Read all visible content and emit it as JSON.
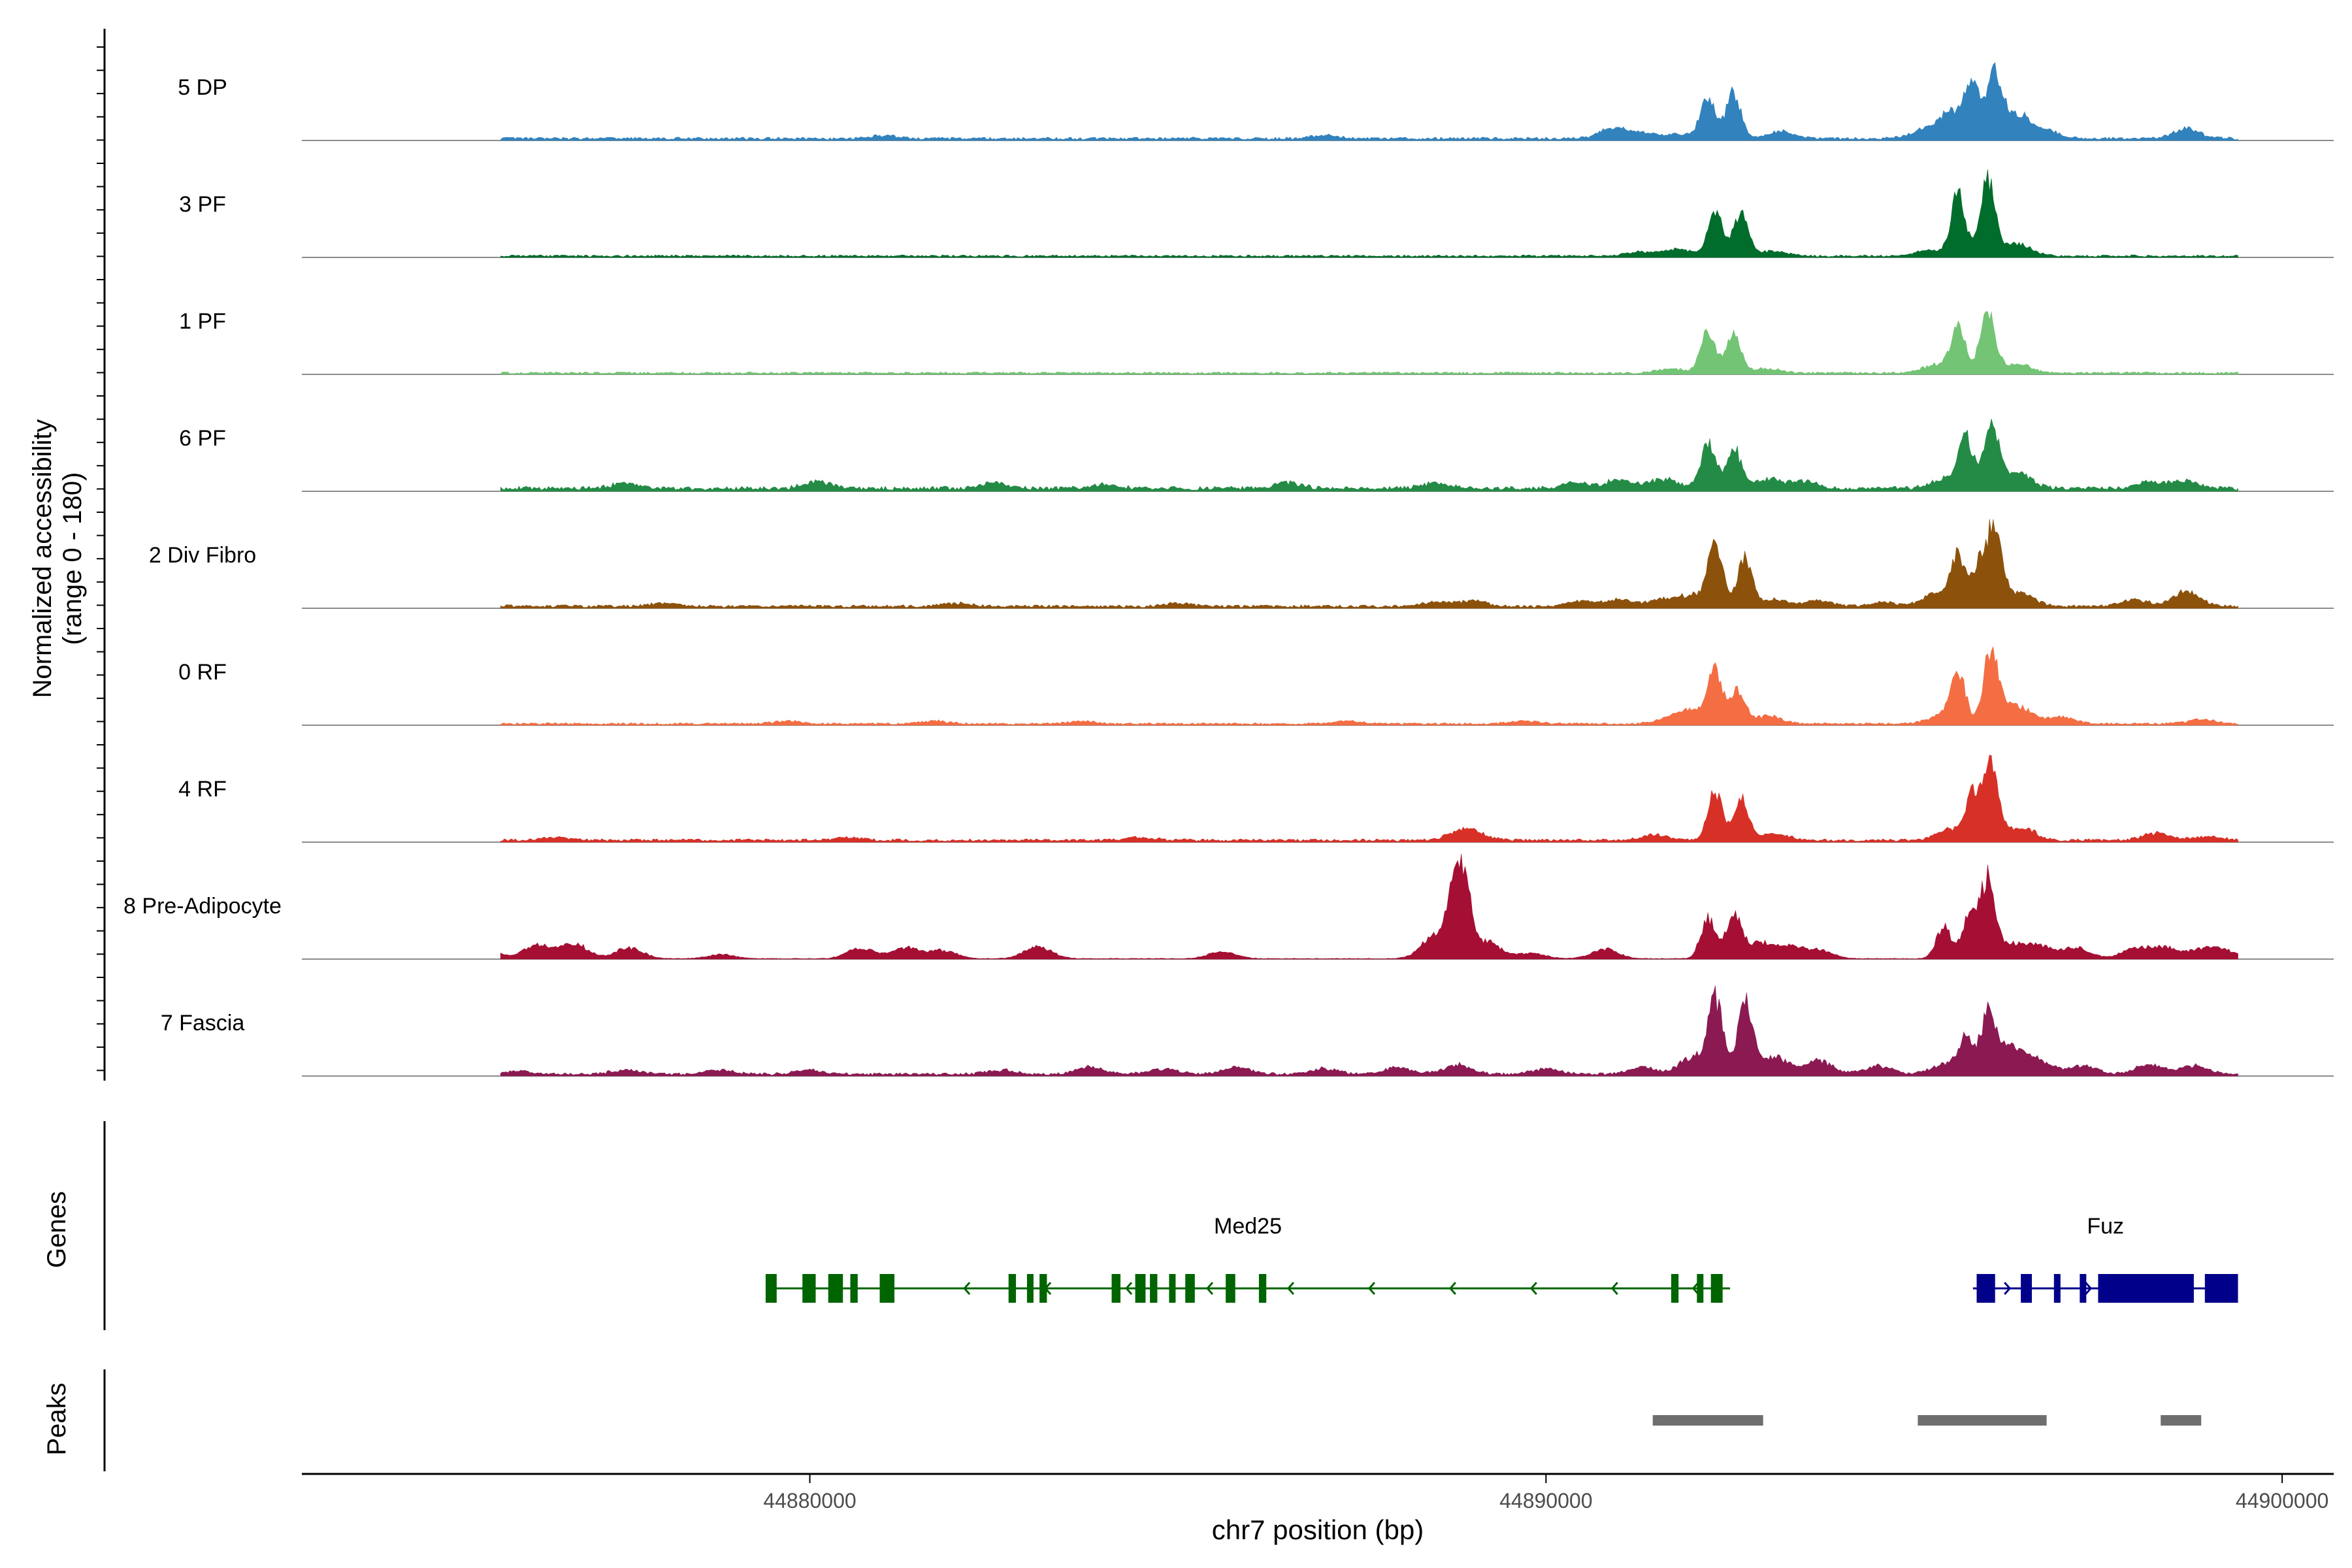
{
  "chart_data": {
    "type": "area",
    "title": "",
    "xlabel": "chr7 position (bp)",
    "ylabel_line1": "Normalized accessibility",
    "ylabel_line2": "(range 0 - 180)",
    "yrange": [
      0,
      180
    ],
    "xlim": [
      44873100,
      44900700
    ],
    "x_ticks": [
      {
        "value": 44880000,
        "label": "44880000"
      },
      {
        "value": 44890000,
        "label": "44890000"
      },
      {
        "value": 44900000,
        "label": "44900000"
      }
    ],
    "tracks": [
      {
        "name": "5 DP",
        "color": "#3182bd",
        "bg": 4,
        "peaks": [
          [
            44881000,
            4
          ],
          [
            44887000,
            5
          ],
          [
            44890900,
            14
          ],
          [
            44891300,
            8
          ],
          [
            44891800,
            6
          ],
          [
            44892200,
            62
          ],
          [
            44892550,
            66
          ],
          [
            44893200,
            10
          ],
          [
            44895100,
            10
          ],
          [
            44895500,
            38
          ],
          [
            44895800,
            82
          ],
          [
            44896100,
            86
          ],
          [
            44896400,
            34
          ],
          [
            44896800,
            10
          ],
          [
            44898700,
            14
          ]
        ]
      },
      {
        "name": "3 PF",
        "color": "#006d2c",
        "bg": 3,
        "peaks": [
          [
            44891300,
            6
          ],
          [
            44891800,
            10
          ],
          [
            44892300,
            68
          ],
          [
            44892650,
            60
          ],
          [
            44893100,
            8
          ],
          [
            44895200,
            8
          ],
          [
            44895600,
            88
          ],
          [
            44896000,
            108
          ],
          [
            44896400,
            18
          ]
        ]
      },
      {
        "name": "1 PF",
        "color": "#74c476",
        "bg": 3,
        "peaks": [
          [
            44891700,
            6
          ],
          [
            44892200,
            60
          ],
          [
            44892550,
            56
          ],
          [
            44893000,
            6
          ],
          [
            44895300,
            12
          ],
          [
            44895600,
            62
          ],
          [
            44896000,
            92
          ],
          [
            44896400,
            14
          ]
        ]
      },
      {
        "name": "6 PF",
        "color": "#238b45",
        "bg": 6,
        "peaks": [
          [
            44877500,
            8
          ],
          [
            44880100,
            10
          ],
          [
            44882500,
            8
          ],
          [
            44884000,
            6
          ],
          [
            44886500,
            8
          ],
          [
            44888500,
            8
          ],
          [
            44890400,
            8
          ],
          [
            44891000,
            12
          ],
          [
            44891600,
            14
          ],
          [
            44892200,
            64
          ],
          [
            44892550,
            58
          ],
          [
            44893000,
            14
          ],
          [
            44893500,
            10
          ],
          [
            44895400,
            14
          ],
          [
            44895700,
            74
          ],
          [
            44896050,
            96
          ],
          [
            44896400,
            24
          ],
          [
            44898200,
            10
          ],
          [
            44898700,
            10
          ]
        ]
      },
      {
        "name": "2 Div Fibro",
        "color": "#8c510a",
        "bg": 4,
        "peaks": [
          [
            44875500,
            5
          ],
          [
            44878000,
            4
          ],
          [
            44882000,
            5
          ],
          [
            44885000,
            4
          ],
          [
            44888500,
            6
          ],
          [
            44889000,
            8
          ],
          [
            44890500,
            8
          ],
          [
            44891000,
            10
          ],
          [
            44891600,
            10
          ],
          [
            44892000,
            16
          ],
          [
            44892300,
            90
          ],
          [
            44892700,
            68
          ],
          [
            44893100,
            10
          ],
          [
            44893700,
            8
          ],
          [
            44894600,
            6
          ],
          [
            44895300,
            18
          ],
          [
            44895600,
            72
          ],
          [
            44895900,
            62
          ],
          [
            44896100,
            110
          ],
          [
            44896450,
            20
          ],
          [
            44898000,
            10
          ],
          [
            44898700,
            22
          ]
        ]
      },
      {
        "name": "0 RF",
        "color": "#f46d43",
        "bg": 3,
        "peaks": [
          [
            44879700,
            4
          ],
          [
            44881700,
            4
          ],
          [
            44883700,
            4
          ],
          [
            44887300,
            4
          ],
          [
            44889700,
            4
          ],
          [
            44891700,
            8
          ],
          [
            44892000,
            18
          ],
          [
            44892300,
            72
          ],
          [
            44892600,
            48
          ],
          [
            44893000,
            12
          ],
          [
            44895400,
            14
          ],
          [
            44895600,
            68
          ],
          [
            44896050,
            108
          ],
          [
            44896400,
            28
          ],
          [
            44897000,
            10
          ],
          [
            44898900,
            6
          ]
        ]
      },
      {
        "name": "4 RF",
        "color": "#d73027",
        "bg": 4,
        "peaks": [
          [
            44876500,
            4
          ],
          [
            44880500,
            4
          ],
          [
            44884500,
            4
          ],
          [
            44888800,
            8
          ],
          [
            44889000,
            12
          ],
          [
            44891500,
            8
          ],
          [
            44892300,
            70
          ],
          [
            44892650,
            64
          ],
          [
            44893100,
            10
          ],
          [
            44895500,
            16
          ],
          [
            44895800,
            64
          ],
          [
            44896050,
            110
          ],
          [
            44896450,
            20
          ],
          [
            44898300,
            10
          ],
          [
            44899000,
            6
          ]
        ]
      },
      {
        "name": "8 Pre-Adipocyte",
        "color": "#a50f33",
        "bg": 1,
        "peaks": [
          [
            44874700,
            16
          ],
          [
            44875600,
            12
          ],
          [
            44876300,
            20
          ],
          [
            44876800,
            22
          ],
          [
            44877550,
            16
          ],
          [
            44878800,
            6
          ],
          [
            44880700,
            16
          ],
          [
            44881300,
            16
          ],
          [
            44881800,
            12
          ],
          [
            44883100,
            18
          ],
          [
            44885600,
            10
          ],
          [
            44888500,
            34
          ],
          [
            44888750,
            80
          ],
          [
            44888900,
            88
          ],
          [
            44889200,
            24
          ],
          [
            44889800,
            8
          ],
          [
            44890800,
            14
          ],
          [
            44892200,
            58
          ],
          [
            44892550,
            66
          ],
          [
            44892900,
            22
          ],
          [
            44893300,
            16
          ],
          [
            44893700,
            12
          ],
          [
            44895400,
            46
          ],
          [
            44895750,
            64
          ],
          [
            44896000,
            110
          ],
          [
            44896300,
            20
          ],
          [
            44896700,
            18
          ],
          [
            44897200,
            16
          ],
          [
            44898000,
            14
          ],
          [
            44898400,
            16
          ],
          [
            44898900,
            12
          ],
          [
            44899200,
            12
          ]
        ]
      },
      {
        "name": "7 Fascia",
        "color": "#8b1a53",
        "bg": 4,
        "peaks": [
          [
            44874700,
            6
          ],
          [
            44876000,
            5
          ],
          [
            44877500,
            6
          ],
          [
            44878800,
            6
          ],
          [
            44880000,
            6
          ],
          [
            44882600,
            6
          ],
          [
            44883800,
            10
          ],
          [
            44884800,
            8
          ],
          [
            44885800,
            10
          ],
          [
            44887000,
            8
          ],
          [
            44888000,
            10
          ],
          [
            44888800,
            14
          ],
          [
            44890000,
            8
          ],
          [
            44891300,
            10
          ],
          [
            44892000,
            24
          ],
          [
            44892300,
            108
          ],
          [
            44892700,
            110
          ],
          [
            44893100,
            26
          ],
          [
            44893700,
            20
          ],
          [
            44894500,
            12
          ],
          [
            44895400,
            14
          ],
          [
            44895700,
            50
          ],
          [
            44896000,
            82
          ],
          [
            44896300,
            40
          ],
          [
            44896700,
            18
          ],
          [
            44897300,
            12
          ],
          [
            44898200,
            14
          ],
          [
            44898800,
            12
          ]
        ]
      }
    ],
    "genes_label": "Genes",
    "genes": [
      {
        "name": "Med25",
        "strand": "-",
        "start": 44879400,
        "end": 44892500,
        "color": "#006400",
        "exons": [
          [
            44879400,
            44879550
          ],
          [
            44879900,
            44880080
          ],
          [
            44880250,
            44880450
          ],
          [
            44880550,
            44880650
          ],
          [
            44880950,
            44881150
          ],
          [
            44882700,
            44882800
          ],
          [
            44882950,
            44883020
          ],
          [
            44883120,
            44883220
          ],
          [
            44884100,
            44884220
          ],
          [
            44884420,
            44884560
          ],
          [
            44884620,
            44884720
          ],
          [
            44884880,
            44884960
          ],
          [
            44885100,
            44885230
          ],
          [
            44885650,
            44885780
          ],
          [
            44886100,
            44886200
          ],
          [
            44891700,
            44891800
          ],
          [
            44892050,
            44892100
          ],
          [
            44892240,
            44892400
          ]
        ]
      },
      {
        "name": "Fuz",
        "strand": "+",
        "start": 44895800,
        "end": 44899400,
        "color": "#00008b",
        "exons": [
          [
            44895850,
            44896100
          ],
          [
            44896450,
            44896600
          ],
          [
            44896900,
            44896980
          ],
          [
            44897250,
            44897330
          ],
          [
            44897500,
            44898800
          ],
          [
            44898950,
            44899400
          ]
        ]
      }
    ],
    "peaks_label": "Peaks",
    "peaks_color": "#6e6e6e",
    "peak_regions": [
      [
        44891450,
        44892950
      ],
      [
        44895050,
        44896800
      ],
      [
        44898350,
        44898900
      ]
    ]
  }
}
